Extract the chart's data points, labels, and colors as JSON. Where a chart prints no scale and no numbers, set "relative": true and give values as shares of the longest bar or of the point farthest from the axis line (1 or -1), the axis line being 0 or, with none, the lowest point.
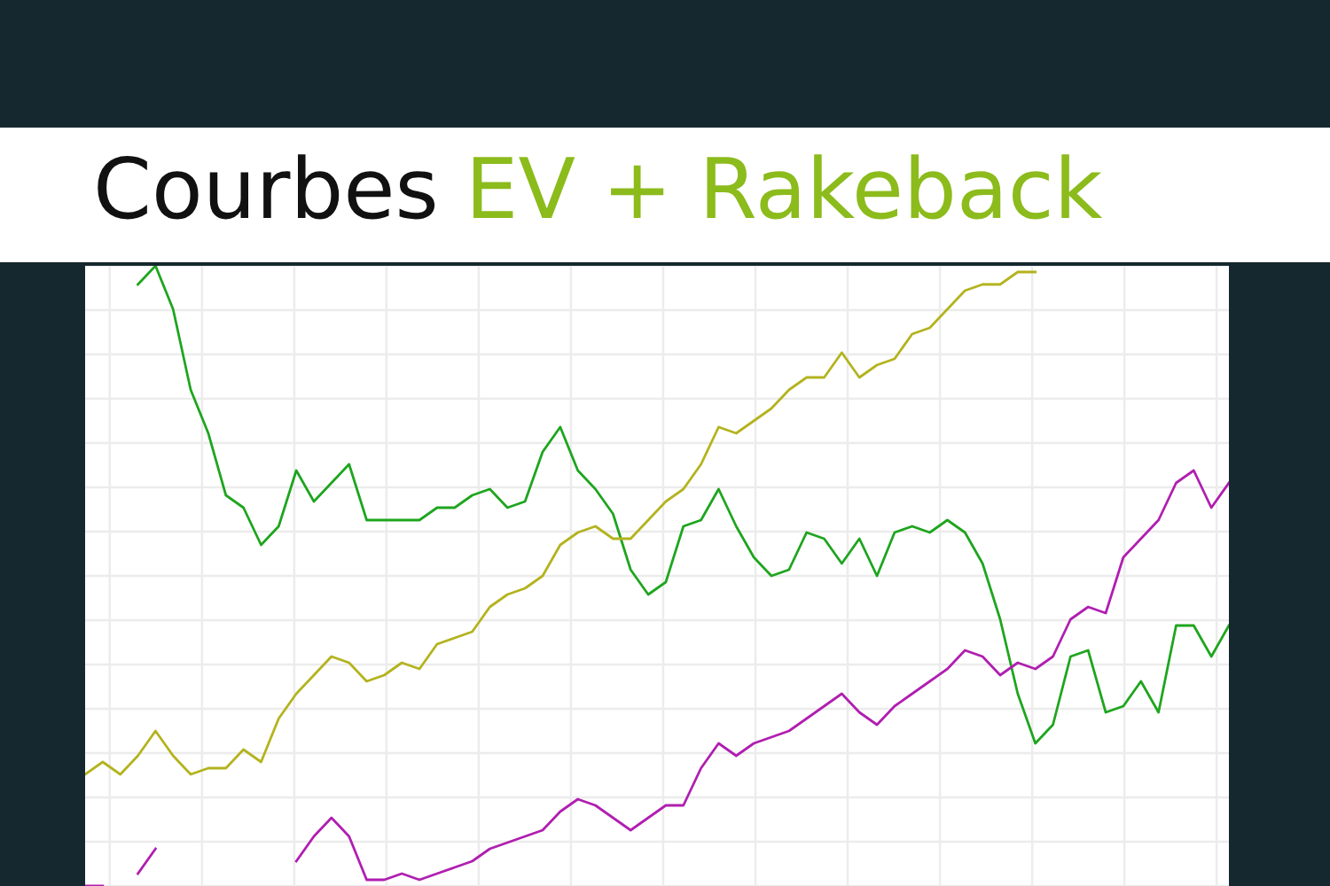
{
  "chart_data": {
    "type": "line",
    "title": "Courbes EV + Rakeback",
    "relative": true,
    "grid": true,
    "line_style": "solid",
    "marker": "none",
    "categories": [
      null,
      null,
      null,
      null,
      null,
      null,
      null,
      null,
      null,
      null,
      null,
      null,
      null,
      null,
      null,
      null,
      null,
      null,
      null,
      null,
      null,
      null,
      null,
      null,
      null,
      null,
      null,
      null,
      null,
      null,
      null,
      null,
      null,
      null,
      null,
      null,
      null,
      null,
      null,
      null,
      null,
      null,
      null,
      null,
      null,
      null,
      null,
      null,
      null,
      null,
      null,
      null,
      null,
      null,
      null,
      null,
      null,
      null,
      null,
      null,
      null,
      null,
      null,
      null,
      null,
      null
    ],
    "series": [
      {
        "color": "#1ea51e",
        "values": [
          null,
          null,
          null,
          0.97,
          1.0,
          0.93,
          0.8,
          0.73,
          0.63,
          0.61,
          0.55,
          0.58,
          0.67,
          0.62,
          0.65,
          0.68,
          0.59,
          0.59,
          0.59,
          0.59,
          0.61,
          0.61,
          0.63,
          0.64,
          0.61,
          0.62,
          0.7,
          0.74,
          0.67,
          0.64,
          0.6,
          0.51,
          0.47,
          0.49,
          0.58,
          0.59,
          0.64,
          0.58,
          0.53,
          0.5,
          0.51,
          0.57,
          0.56,
          0.52,
          0.56,
          0.5,
          0.57,
          0.58,
          0.57,
          0.59,
          0.57,
          0.52,
          0.43,
          0.31,
          0.23,
          0.26,
          0.37,
          0.38,
          0.28,
          0.29,
          0.33,
          0.28,
          0.42,
          0.42,
          0.37,
          0.42
        ]
      },
      {
        "color": "#b3b31e",
        "values": [
          0.18,
          0.2,
          0.18,
          0.21,
          0.25,
          0.21,
          0.18,
          0.19,
          0.19,
          0.22,
          0.2,
          0.27,
          0.31,
          0.34,
          0.37,
          0.36,
          0.33,
          0.34,
          0.36,
          0.35,
          0.39,
          0.4,
          0.41,
          0.45,
          0.47,
          0.48,
          0.5,
          0.55,
          0.57,
          0.58,
          0.56,
          0.56,
          0.59,
          0.62,
          0.64,
          0.68,
          0.74,
          0.73,
          0.75,
          0.77,
          0.8,
          0.82,
          0.82,
          0.86,
          0.82,
          0.84,
          0.85,
          0.89,
          0.9,
          0.93,
          0.96,
          0.97,
          0.97,
          0.99,
          0.99,
          null,
          null,
          null,
          null,
          null,
          null,
          null,
          null,
          null,
          null,
          null
        ]
      },
      {
        "color": "#b01eb0",
        "values": [
          0.0,
          0.0,
          null,
          0.02,
          0.06,
          null,
          null,
          null,
          null,
          null,
          null,
          null,
          0.04,
          0.08,
          0.11,
          0.08,
          0.01,
          0.01,
          0.02,
          0.01,
          0.02,
          0.03,
          0.04,
          0.06,
          0.07,
          0.08,
          0.09,
          0.12,
          0.14,
          0.13,
          0.11,
          0.09,
          0.11,
          0.13,
          0.13,
          0.19,
          0.23,
          0.21,
          0.23,
          0.24,
          0.25,
          0.27,
          0.29,
          0.31,
          0.28,
          0.26,
          0.29,
          0.31,
          0.33,
          0.35,
          0.38,
          0.37,
          0.34,
          0.36,
          0.35,
          0.37,
          0.43,
          0.45,
          0.44,
          0.53,
          0.56,
          0.59,
          0.65,
          0.67,
          0.61,
          0.65
        ]
      }
    ]
  }
}
